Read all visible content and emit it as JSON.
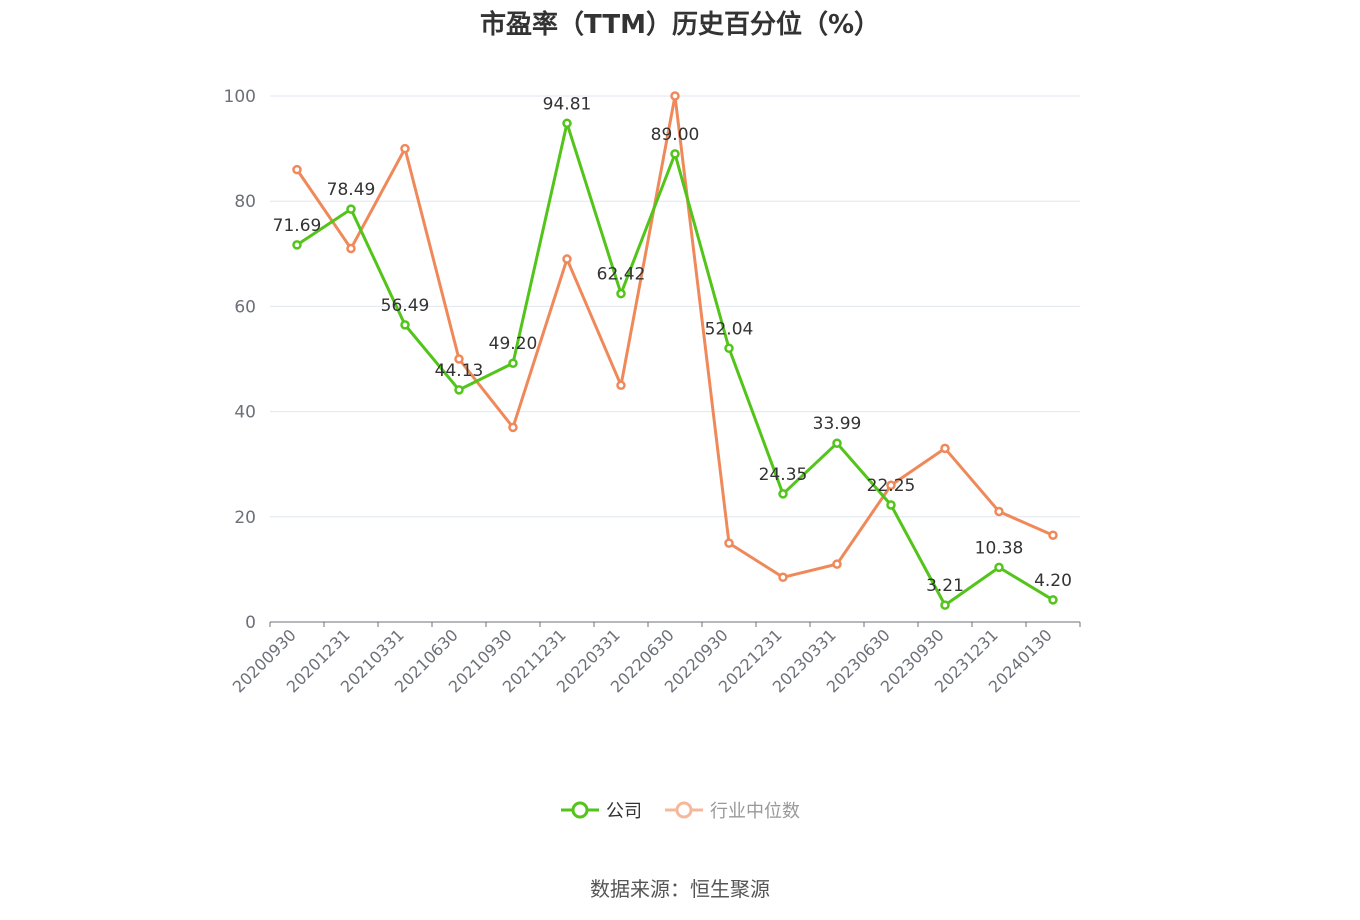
{
  "chart_data": {
    "type": "line",
    "title": "市盈率（TTM）历史百分位（%）",
    "categories": [
      "20200930",
      "20201231",
      "20210331",
      "20210630",
      "20210930",
      "20211231",
      "20220331",
      "20220630",
      "20220930",
      "20221231",
      "20230331",
      "20230630",
      "20230930",
      "20231231",
      "20240130"
    ],
    "ylim": [
      0,
      100
    ],
    "yticks": [
      0,
      20,
      40,
      60,
      80,
      100
    ],
    "grid": true,
    "legend_position": "bottom",
    "series": [
      {
        "name": "公司",
        "color": "#52c41a",
        "show_labels": true,
        "values": [
          71.69,
          78.49,
          56.49,
          44.13,
          49.2,
          94.81,
          62.42,
          89.0,
          52.04,
          24.35,
          33.99,
          22.25,
          3.21,
          10.38,
          4.2
        ],
        "labels": [
          "71.69",
          "78.49",
          "56.49",
          "44.13",
          "49.20",
          "94.81",
          "62.42",
          "89.00",
          "52.04",
          "24.35",
          "33.99",
          "22.25",
          "3.21",
          "10.38",
          "4.20"
        ]
      },
      {
        "name": "行业中位数",
        "color": "#f0895a",
        "show_labels": false,
        "values": [
          86,
          71,
          90,
          50,
          37,
          69,
          45,
          100,
          15,
          8.5,
          11,
          26,
          33,
          21,
          16.5
        ]
      }
    ]
  },
  "source": "数据来源：恒生聚源"
}
